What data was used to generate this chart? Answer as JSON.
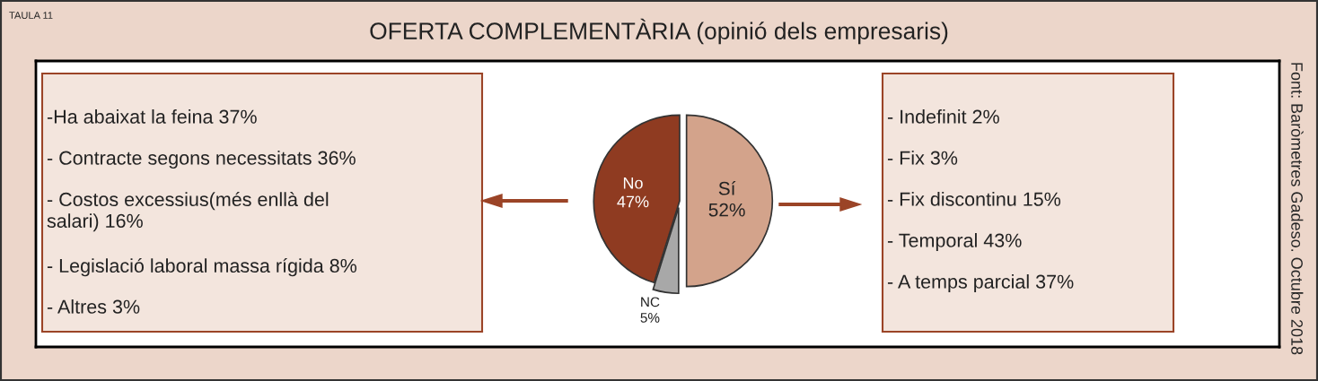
{
  "chart_data": [
    {
      "type": "other",
      "annotations": [
        "-Ha abaixat la feina 37%",
        "- Contracte segons necessitats 36%",
        "- Costos excessius(més enllà del\nsalari) 16%",
        "- Legislació laboral massa rígida 8%",
        "- Altres 3%"
      ]
    },
    {
      "type": "pie",
      "title": "OFERTA COMPLEMENTÀRIA (opinió dels empresaris)",
      "categories": [
        "Sí",
        "NC",
        "No"
      ],
      "values": [
        52,
        5,
        47
      ],
      "value_labels": [
        "52%",
        "5%",
        "47%"
      ],
      "colors": [
        "#d3a38b",
        "#a8a8a8",
        "#8f3b21"
      ],
      "annotations": [
        "TAULA 11",
        "Font: Baròmetres Gadeso. Octubre 2018"
      ]
    },
    {
      "type": "other",
      "annotations": [
        "- Indefinit 2%",
        "- Fix 3%",
        "- Fix discontinu 15%",
        "- Temporal 43%",
        "- A temps parcial 37%"
      ]
    }
  ]
}
